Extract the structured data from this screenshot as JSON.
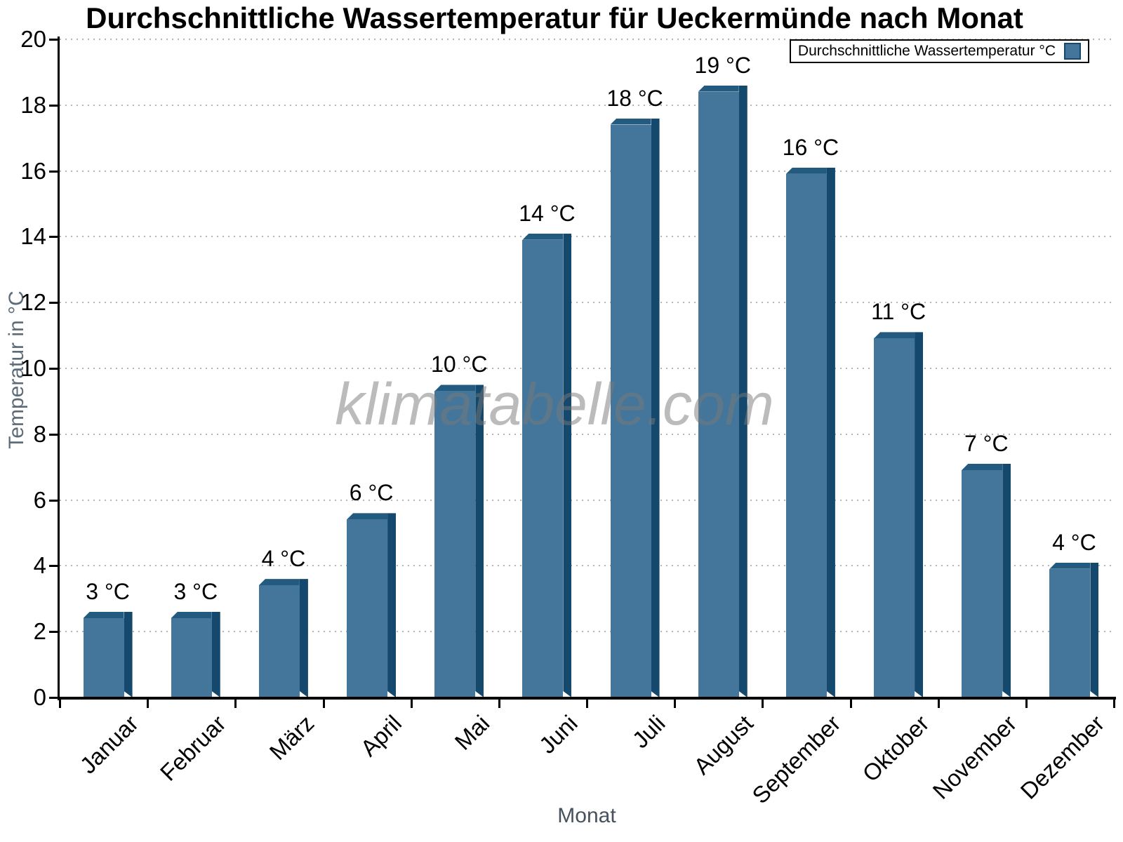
{
  "chart_data": {
    "type": "bar",
    "title": "Durchschnittliche Wassertemperatur für Ueckermünde nach Monat",
    "xlabel": "Monat",
    "ylabel": "Temperatur in °C",
    "legend_label": "Durchschnittliche Wassertemperatur °C",
    "legend_position": "top-right",
    "watermark": "klimatabelle.com",
    "categories": [
      "Januar",
      "Februar",
      "März",
      "April",
      "Mai",
      "Juni",
      "Juli",
      "August",
      "September",
      "Oktober",
      "November",
      "Dezember"
    ],
    "values": [
      2.6,
      2.6,
      3.6,
      5.6,
      9.5,
      14.1,
      17.6,
      18.6,
      16.1,
      11.1,
      7.1,
      4.1
    ],
    "bar_labels": [
      "3 °C",
      "3 °C",
      "4 °C",
      "6 °C",
      "10 °C",
      "14 °C",
      "18 °C",
      "19 °C",
      "16 °C",
      "11 °C",
      "7 °C",
      "4 °C"
    ],
    "ylim": [
      0,
      20
    ],
    "ytick_step": 2,
    "yticks": [
      0,
      2,
      4,
      6,
      8,
      10,
      12,
      14,
      16,
      18,
      20
    ],
    "grid": "horizontal-dotted",
    "colors": {
      "bar_face": "#44769B",
      "bar_top": "#235B80",
      "bar_side": "#14496D",
      "gridline": "#B5B5B5",
      "axis": "#000000",
      "tick_label": "#000000",
      "value_label": "#000000",
      "y_axis_title": "#5C6B77",
      "x_axis_title": "#47525D",
      "watermark_color": "#787878"
    }
  }
}
